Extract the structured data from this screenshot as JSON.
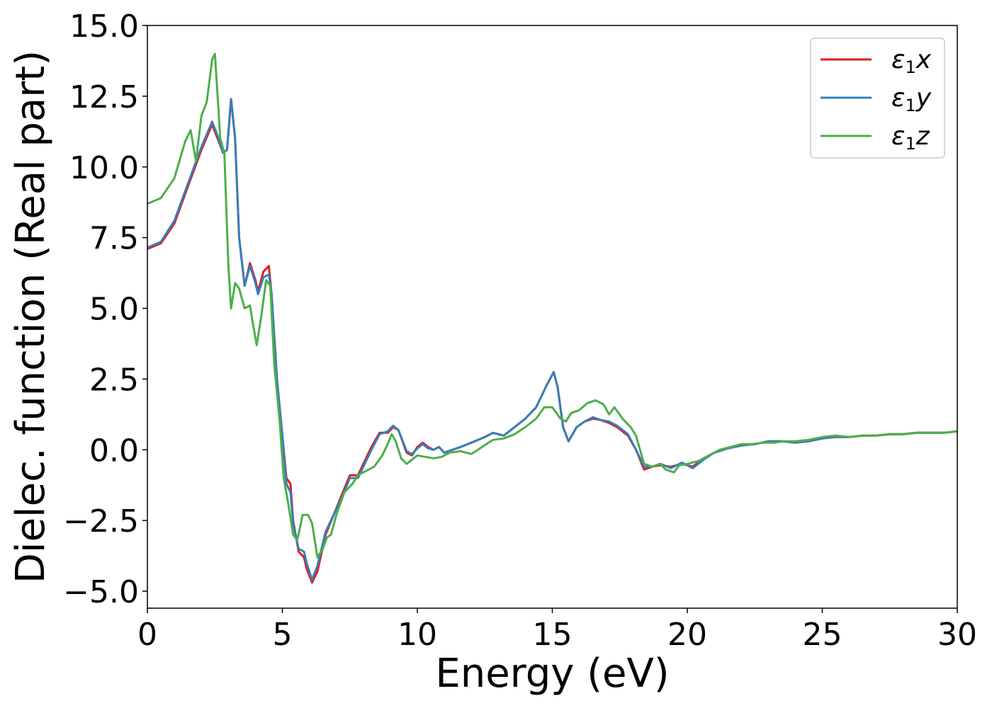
{
  "chart_data": {
    "type": "line",
    "xlabel": "Energy (eV)",
    "ylabel": "Dielec. function (Real part)",
    "xlim": [
      0,
      30
    ],
    "ylim": [
      -5.6,
      15.0
    ],
    "xticks": [
      0,
      5,
      10,
      15,
      20,
      25,
      30
    ],
    "xtick_labels": [
      "0",
      "5",
      "10",
      "15",
      "20",
      "25",
      "30"
    ],
    "yticks": [
      -5.0,
      -2.5,
      0.0,
      2.5,
      5.0,
      7.5,
      10.0,
      12.5,
      15.0
    ],
    "ytick_labels": [
      "−5.0",
      "−2.5",
      "0.0",
      "2.5",
      "5.0",
      "7.5",
      "10.0",
      "12.5",
      "15.0"
    ],
    "grid": false,
    "legend_position": "top-right",
    "series": [
      {
        "name": "ε1x",
        "legend_base": "ε",
        "legend_sub": "1",
        "legend_var": "x",
        "color": "#e41a1c",
        "points": [
          [
            0,
            7.1
          ],
          [
            0.5,
            7.3
          ],
          [
            1.0,
            8.0
          ],
          [
            1.5,
            9.3
          ],
          [
            2.0,
            10.6
          ],
          [
            2.4,
            11.5
          ],
          [
            2.6,
            11.0
          ],
          [
            2.8,
            10.5
          ],
          [
            2.95,
            10.6
          ],
          [
            3.1,
            12.4
          ],
          [
            3.25,
            11.0
          ],
          [
            3.4,
            7.5
          ],
          [
            3.6,
            5.8
          ],
          [
            3.8,
            6.6
          ],
          [
            4.0,
            6.0
          ],
          [
            4.1,
            5.6
          ],
          [
            4.3,
            6.3
          ],
          [
            4.5,
            6.5
          ],
          [
            4.6,
            5.5
          ],
          [
            4.8,
            2.5
          ],
          [
            5.0,
            0.5
          ],
          [
            5.15,
            -1.0
          ],
          [
            5.3,
            -1.2
          ],
          [
            5.4,
            -2.5
          ],
          [
            5.6,
            -3.6
          ],
          [
            5.8,
            -3.8
          ],
          [
            5.9,
            -4.2
          ],
          [
            6.1,
            -4.7
          ],
          [
            6.3,
            -4.3
          ],
          [
            6.6,
            -3.0
          ],
          [
            6.9,
            -2.3
          ],
          [
            7.2,
            -1.6
          ],
          [
            7.5,
            -0.9
          ],
          [
            7.8,
            -0.9
          ],
          [
            8.0,
            -0.5
          ],
          [
            8.3,
            0.1
          ],
          [
            8.6,
            0.6
          ],
          [
            8.9,
            0.6
          ],
          [
            9.1,
            0.8
          ],
          [
            9.3,
            0.7
          ],
          [
            9.6,
            -0.1
          ],
          [
            9.8,
            -0.2
          ],
          [
            10.0,
            0.1
          ],
          [
            10.2,
            0.25
          ],
          [
            10.4,
            0.1
          ],
          [
            10.6,
            0.0
          ],
          [
            10.8,
            0.1
          ],
          [
            11.0,
            -0.1
          ],
          [
            11.3,
            0.0
          ],
          [
            11.6,
            0.1
          ],
          [
            12.0,
            0.25
          ],
          [
            12.5,
            0.45
          ],
          [
            12.8,
            0.6
          ],
          [
            13.2,
            0.5
          ],
          [
            13.6,
            0.8
          ],
          [
            14.0,
            1.1
          ],
          [
            14.4,
            1.5
          ],
          [
            14.8,
            2.3
          ],
          [
            15.05,
            2.75
          ],
          [
            15.2,
            2.2
          ],
          [
            15.4,
            0.8
          ],
          [
            15.6,
            0.3
          ],
          [
            15.9,
            0.8
          ],
          [
            16.2,
            1.0
          ],
          [
            16.5,
            1.1
          ],
          [
            16.8,
            1.05
          ],
          [
            17.1,
            0.95
          ],
          [
            17.4,
            0.8
          ],
          [
            17.8,
            0.5
          ],
          [
            18.1,
            0.0
          ],
          [
            18.4,
            -0.7
          ],
          [
            18.7,
            -0.6
          ],
          [
            19.0,
            -0.55
          ],
          [
            19.4,
            -0.6
          ],
          [
            19.8,
            -0.5
          ],
          [
            20.2,
            -0.6
          ],
          [
            20.6,
            -0.3
          ],
          [
            21.0,
            -0.1
          ],
          [
            21.5,
            0.05
          ],
          [
            22.0,
            0.15
          ],
          [
            22.5,
            0.2
          ],
          [
            23.0,
            0.3
          ],
          [
            23.5,
            0.3
          ],
          [
            24.0,
            0.25
          ],
          [
            24.5,
            0.3
          ],
          [
            25.0,
            0.4
          ],
          [
            25.5,
            0.45
          ],
          [
            26.0,
            0.45
          ],
          [
            26.5,
            0.5
          ],
          [
            27.0,
            0.5
          ],
          [
            27.5,
            0.55
          ],
          [
            28.0,
            0.55
          ],
          [
            28.5,
            0.6
          ],
          [
            29.0,
            0.6
          ],
          [
            29.5,
            0.6
          ],
          [
            30.0,
            0.65
          ]
        ]
      },
      {
        "name": "ε1y",
        "legend_base": "ε",
        "legend_sub": "1",
        "legend_var": "y",
        "color": "#377eb8",
        "points": [
          [
            0,
            7.15
          ],
          [
            0.5,
            7.35
          ],
          [
            1.0,
            8.1
          ],
          [
            1.5,
            9.4
          ],
          [
            2.0,
            10.7
          ],
          [
            2.4,
            11.6
          ],
          [
            2.6,
            11.1
          ],
          [
            2.8,
            10.5
          ],
          [
            2.95,
            10.6
          ],
          [
            3.1,
            12.4
          ],
          [
            3.25,
            11.0
          ],
          [
            3.4,
            7.5
          ],
          [
            3.6,
            5.8
          ],
          [
            3.8,
            6.5
          ],
          [
            4.0,
            5.9
          ],
          [
            4.1,
            5.5
          ],
          [
            4.3,
            6.1
          ],
          [
            4.5,
            6.2
          ],
          [
            4.6,
            5.5
          ],
          [
            4.8,
            2.5
          ],
          [
            5.0,
            0.5
          ],
          [
            5.15,
            -1.2
          ],
          [
            5.3,
            -1.5
          ],
          [
            5.4,
            -2.6
          ],
          [
            5.6,
            -3.5
          ],
          [
            5.8,
            -3.6
          ],
          [
            5.9,
            -4.0
          ],
          [
            6.1,
            -4.6
          ],
          [
            6.3,
            -4.1
          ],
          [
            6.6,
            -2.9
          ],
          [
            6.9,
            -2.3
          ],
          [
            7.2,
            -1.7
          ],
          [
            7.5,
            -1.0
          ],
          [
            7.8,
            -1.0
          ],
          [
            8.0,
            -0.6
          ],
          [
            8.3,
            0.0
          ],
          [
            8.6,
            0.55
          ],
          [
            8.9,
            0.65
          ],
          [
            9.1,
            0.85
          ],
          [
            9.3,
            0.7
          ],
          [
            9.6,
            -0.05
          ],
          [
            9.8,
            -0.15
          ],
          [
            10.0,
            0.05
          ],
          [
            10.2,
            0.2
          ],
          [
            10.4,
            0.05
          ],
          [
            10.6,
            0.0
          ],
          [
            10.8,
            0.1
          ],
          [
            11.0,
            -0.1
          ],
          [
            11.3,
            0.0
          ],
          [
            11.6,
            0.1
          ],
          [
            12.0,
            0.25
          ],
          [
            12.5,
            0.45
          ],
          [
            12.8,
            0.6
          ],
          [
            13.2,
            0.5
          ],
          [
            13.6,
            0.8
          ],
          [
            14.0,
            1.1
          ],
          [
            14.4,
            1.5
          ],
          [
            14.8,
            2.3
          ],
          [
            15.05,
            2.75
          ],
          [
            15.2,
            2.2
          ],
          [
            15.4,
            0.8
          ],
          [
            15.6,
            0.3
          ],
          [
            15.9,
            0.8
          ],
          [
            16.2,
            1.0
          ],
          [
            16.5,
            1.15
          ],
          [
            16.8,
            1.05
          ],
          [
            17.1,
            1.0
          ],
          [
            17.4,
            0.85
          ],
          [
            17.8,
            0.55
          ],
          [
            18.1,
            0.0
          ],
          [
            18.4,
            -0.6
          ],
          [
            18.7,
            -0.6
          ],
          [
            19.0,
            -0.5
          ],
          [
            19.4,
            -0.65
          ],
          [
            19.8,
            -0.45
          ],
          [
            20.2,
            -0.65
          ],
          [
            20.6,
            -0.35
          ],
          [
            21.0,
            -0.1
          ],
          [
            21.5,
            0.05
          ],
          [
            22.0,
            0.15
          ],
          [
            22.5,
            0.2
          ],
          [
            23.0,
            0.3
          ],
          [
            23.5,
            0.3
          ],
          [
            24.0,
            0.25
          ],
          [
            24.5,
            0.3
          ],
          [
            25.0,
            0.4
          ],
          [
            25.5,
            0.45
          ],
          [
            26.0,
            0.45
          ],
          [
            26.5,
            0.5
          ],
          [
            27.0,
            0.5
          ],
          [
            27.5,
            0.55
          ],
          [
            28.0,
            0.55
          ],
          [
            28.5,
            0.6
          ],
          [
            29.0,
            0.6
          ],
          [
            29.5,
            0.6
          ],
          [
            30.0,
            0.65
          ]
        ]
      },
      {
        "name": "ε1z",
        "legend_base": "ε",
        "legend_sub": "1",
        "legend_var": "z",
        "color": "#4daf4a",
        "points": [
          [
            0,
            8.7
          ],
          [
            0.5,
            8.9
          ],
          [
            1.0,
            9.6
          ],
          [
            1.4,
            10.9
          ],
          [
            1.6,
            11.3
          ],
          [
            1.8,
            10.2
          ],
          [
            2.0,
            11.8
          ],
          [
            2.2,
            12.3
          ],
          [
            2.4,
            13.8
          ],
          [
            2.5,
            14.0
          ],
          [
            2.6,
            12.5
          ],
          [
            2.7,
            11.0
          ],
          [
            2.85,
            10.5
          ],
          [
            3.0,
            6.5
          ],
          [
            3.1,
            5.0
          ],
          [
            3.25,
            5.9
          ],
          [
            3.4,
            5.7
          ],
          [
            3.6,
            5.0
          ],
          [
            3.8,
            5.1
          ],
          [
            3.9,
            4.5
          ],
          [
            4.05,
            3.7
          ],
          [
            4.2,
            4.6
          ],
          [
            4.4,
            6.0
          ],
          [
            4.55,
            5.8
          ],
          [
            4.7,
            3.0
          ],
          [
            4.9,
            1.0
          ],
          [
            5.05,
            -1.0
          ],
          [
            5.2,
            -1.8
          ],
          [
            5.4,
            -3.0
          ],
          [
            5.55,
            -3.2
          ],
          [
            5.75,
            -2.3
          ],
          [
            5.95,
            -2.3
          ],
          [
            6.1,
            -2.6
          ],
          [
            6.3,
            -3.8
          ],
          [
            6.5,
            -3.5
          ],
          [
            6.65,
            -3.1
          ],
          [
            6.8,
            -3.0
          ],
          [
            7.0,
            -2.3
          ],
          [
            7.3,
            -1.5
          ],
          [
            7.6,
            -1.2
          ],
          [
            7.8,
            -0.9
          ],
          [
            8.1,
            -0.75
          ],
          [
            8.4,
            -0.6
          ],
          [
            8.7,
            -0.2
          ],
          [
            8.9,
            0.2
          ],
          [
            9.05,
            0.55
          ],
          [
            9.2,
            0.3
          ],
          [
            9.4,
            -0.3
          ],
          [
            9.6,
            -0.5
          ],
          [
            9.8,
            -0.35
          ],
          [
            10.0,
            -0.2
          ],
          [
            10.3,
            -0.25
          ],
          [
            10.6,
            -0.3
          ],
          [
            10.9,
            -0.25
          ],
          [
            11.2,
            -0.1
          ],
          [
            11.6,
            -0.05
          ],
          [
            12.0,
            -0.15
          ],
          [
            12.4,
            0.1
          ],
          [
            12.8,
            0.35
          ],
          [
            13.2,
            0.4
          ],
          [
            13.6,
            0.55
          ],
          [
            14.0,
            0.8
          ],
          [
            14.4,
            1.1
          ],
          [
            14.7,
            1.5
          ],
          [
            15.0,
            1.5
          ],
          [
            15.3,
            1.1
          ],
          [
            15.5,
            1.0
          ],
          [
            15.7,
            1.3
          ],
          [
            16.0,
            1.4
          ],
          [
            16.3,
            1.65
          ],
          [
            16.6,
            1.75
          ],
          [
            16.9,
            1.6
          ],
          [
            17.1,
            1.25
          ],
          [
            17.3,
            1.5
          ],
          [
            17.6,
            1.1
          ],
          [
            17.9,
            0.8
          ],
          [
            18.1,
            0.5
          ],
          [
            18.4,
            -0.5
          ],
          [
            18.7,
            -0.6
          ],
          [
            19.0,
            -0.5
          ],
          [
            19.2,
            -0.7
          ],
          [
            19.5,
            -0.8
          ],
          [
            19.7,
            -0.55
          ],
          [
            20.0,
            -0.5
          ],
          [
            20.4,
            -0.4
          ],
          [
            20.8,
            -0.2
          ],
          [
            21.2,
            0.0
          ],
          [
            21.6,
            0.1
          ],
          [
            22.0,
            0.2
          ],
          [
            22.4,
            0.2
          ],
          [
            22.8,
            0.25
          ],
          [
            23.2,
            0.25
          ],
          [
            23.6,
            0.3
          ],
          [
            24.0,
            0.3
          ],
          [
            24.5,
            0.35
          ],
          [
            25.0,
            0.45
          ],
          [
            25.5,
            0.5
          ],
          [
            26.0,
            0.45
          ],
          [
            26.5,
            0.5
          ],
          [
            27.0,
            0.5
          ],
          [
            27.5,
            0.55
          ],
          [
            28.0,
            0.55
          ],
          [
            28.5,
            0.6
          ],
          [
            29.0,
            0.6
          ],
          [
            29.5,
            0.6
          ],
          [
            30.0,
            0.65
          ]
        ]
      }
    ]
  }
}
